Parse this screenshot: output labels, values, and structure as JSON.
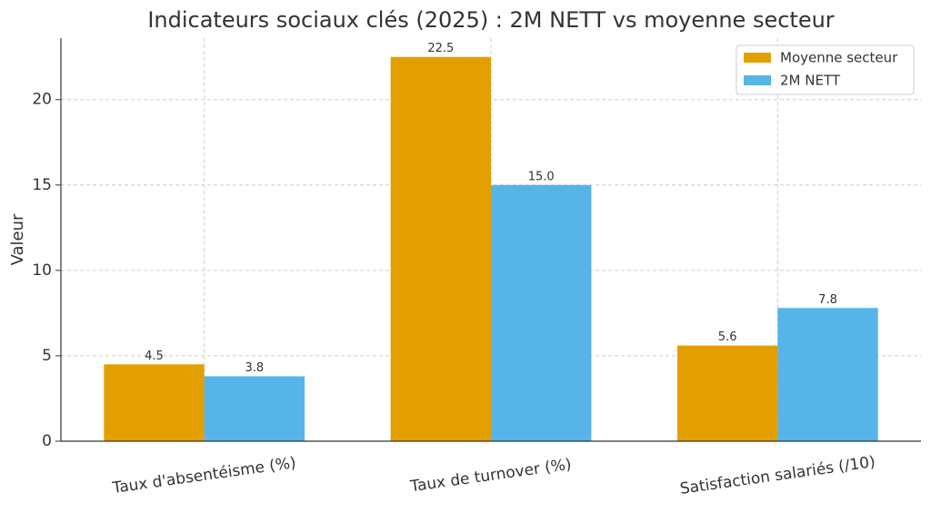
{
  "chart_data": {
    "type": "bar",
    "title": "Indicateurs sociaux clés (2025) : 2M NETT vs moyenne secteur",
    "y_label": "Valeur",
    "categories": [
      "Taux d'absentéisme (%)",
      "Taux de turnover (%)",
      "Satisfaction salariés (/10)"
    ],
    "series": [
      {
        "name": "Moyenne secteur",
        "color": "#e39f00",
        "values": [
          4.5,
          22.5,
          5.6
        ],
        "value_labels": [
          "4.5",
          "22.5",
          "5.6"
        ]
      },
      {
        "name": "2M NETT",
        "color": "#56b4e9",
        "values": [
          3.8,
          15,
          7.8
        ],
        "value_labels": [
          "3.8",
          "15.0",
          "7.8"
        ]
      }
    ],
    "ylim": [
      0,
      23.6
    ],
    "yticks": [
      0,
      5,
      10,
      15,
      20
    ],
    "grid": true,
    "legend": "upper right"
  }
}
